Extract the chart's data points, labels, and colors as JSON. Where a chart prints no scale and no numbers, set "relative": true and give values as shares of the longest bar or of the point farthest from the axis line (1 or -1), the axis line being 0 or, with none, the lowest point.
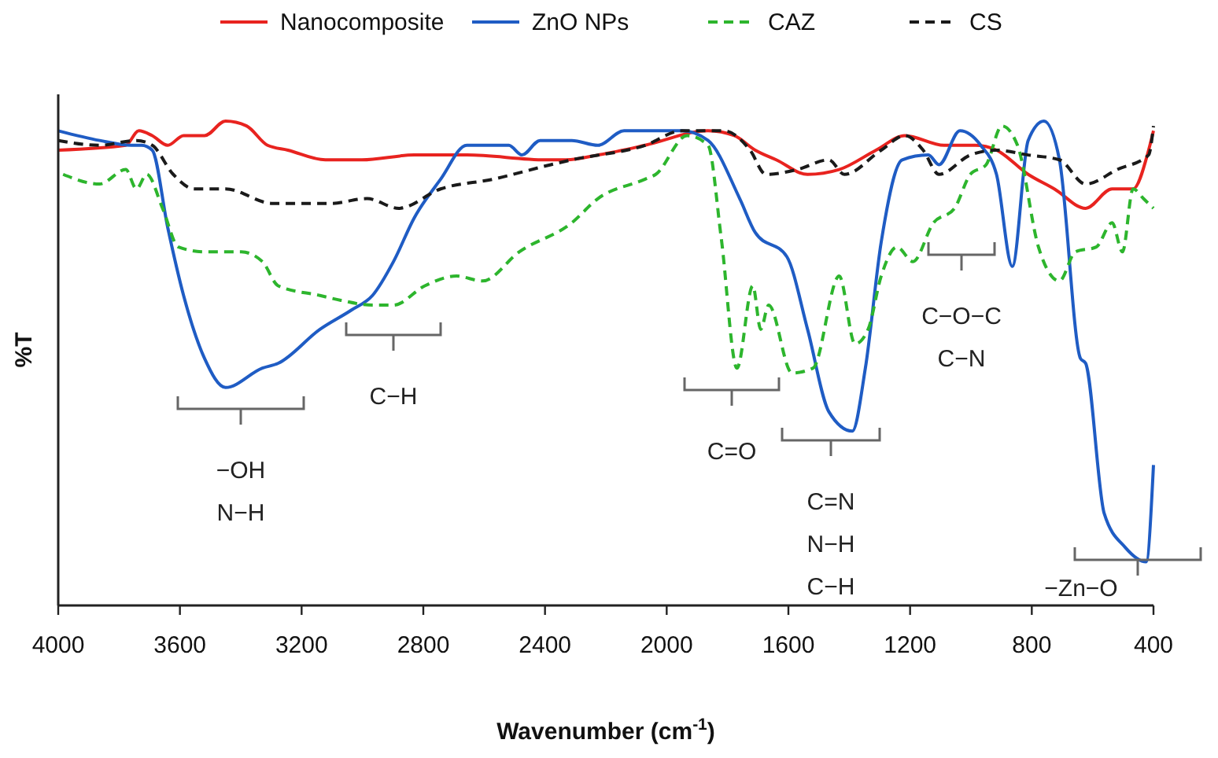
{
  "chart_data": {
    "type": "line",
    "relative": true,
    "xlabel": "Wavenumber (cm$^{-1}$)",
    "ylabel": "%T",
    "xlim": [
      4000,
      400
    ],
    "xticks": [
      4000,
      3600,
      3200,
      2800,
      2400,
      2000,
      1600,
      1200,
      800,
      400
    ],
    "legend": "top",
    "tick_labels": "x",
    "grid": false,
    "marker": "none",
    "series": [
      {
        "name": "Nanocomposite",
        "color": "#e8231f",
        "line_style": "solid",
        "x": [
          4000,
          3778,
          3735,
          3691,
          3640,
          3588,
          3519,
          3450,
          3381,
          3312,
          3245,
          3122,
          3002,
          2830,
          2657,
          2398,
          2330,
          2226,
          2071,
          1864,
          1778,
          1709,
          1640,
          1537,
          1433,
          1312,
          1217,
          1088,
          985,
          916,
          812,
          726,
          623,
          536,
          467,
          416,
          400
        ],
        "values": [
          0.94,
          0.95,
          0.98,
          0.97,
          0.95,
          0.97,
          0.97,
          1.0,
          0.99,
          0.95,
          0.94,
          0.92,
          0.92,
          0.93,
          0.93,
          0.92,
          0.92,
          0.93,
          0.95,
          0.98,
          0.97,
          0.94,
          0.92,
          0.89,
          0.9,
          0.94,
          0.97,
          0.95,
          0.95,
          0.94,
          0.89,
          0.86,
          0.82,
          0.86,
          0.86,
          0.94,
          0.98
        ]
      },
      {
        "name": "ZnO NPs",
        "color": "#1f5cc4",
        "line_style": "solid",
        "x": [
          4000,
          3864,
          3760,
          3726,
          3691,
          3640,
          3588,
          3519,
          3450,
          3329,
          3277,
          3140,
          3036,
          2967,
          2898,
          2830,
          2743,
          2657,
          2519,
          2476,
          2416,
          2312,
          2226,
          2140,
          1950,
          1864,
          1760,
          1709,
          1605,
          1537,
          1467,
          1390,
          1347,
          1295,
          1226,
          1140,
          1105,
          1036,
          968,
          916,
          864,
          812,
          760,
          709,
          640,
          623,
          562,
          493,
          424,
          400
        ],
        "values": [
          0.98,
          0.96,
          0.95,
          0.95,
          0.94,
          0.78,
          0.64,
          0.51,
          0.45,
          0.49,
          0.5,
          0.57,
          0.61,
          0.64,
          0.71,
          0.8,
          0.88,
          0.95,
          0.95,
          0.93,
          0.96,
          0.96,
          0.95,
          0.98,
          0.98,
          0.96,
          0.84,
          0.77,
          0.72,
          0.57,
          0.4,
          0.36,
          0.49,
          0.75,
          0.92,
          0.93,
          0.91,
          0.98,
          0.95,
          0.89,
          0.7,
          0.96,
          1.0,
          0.92,
          0.51,
          0.5,
          0.19,
          0.12,
          0.09,
          0.29
        ]
      },
      {
        "name": "CAZ",
        "color": "#2db52d",
        "line_style": "dashed",
        "x": [
          3984,
          3864,
          3778,
          3743,
          3709,
          3657,
          3605,
          3519,
          3398,
          3329,
          3277,
          3140,
          3071,
          2967,
          2898,
          2795,
          2691,
          2605,
          2485,
          2312,
          2226,
          2071,
          2036,
          1933,
          1864,
          1821,
          1769,
          1717,
          1691,
          1665,
          1588,
          1519,
          1433,
          1381,
          1338,
          1295,
          1243,
          1191,
          1123,
          1054,
          1002,
          950,
          898,
          847,
          778,
          709,
          657,
          588,
          536,
          502,
          467,
          433,
          400
        ],
        "values": [
          0.89,
          0.87,
          0.9,
          0.86,
          0.89,
          0.82,
          0.74,
          0.73,
          0.73,
          0.71,
          0.66,
          0.64,
          0.63,
          0.62,
          0.62,
          0.66,
          0.68,
          0.67,
          0.73,
          0.79,
          0.84,
          0.88,
          0.89,
          0.97,
          0.95,
          0.76,
          0.49,
          0.66,
          0.57,
          0.62,
          0.48,
          0.49,
          0.68,
          0.54,
          0.57,
          0.68,
          0.74,
          0.71,
          0.79,
          0.82,
          0.89,
          0.91,
          0.99,
          0.95,
          0.74,
          0.67,
          0.73,
          0.74,
          0.79,
          0.73,
          0.86,
          0.84,
          0.82
        ]
      },
      {
        "name": "CS",
        "color": "#1a1a1a",
        "line_style": "dashed",
        "x": [
          4000,
          3864,
          3743,
          3691,
          3622,
          3553,
          3450,
          3295,
          3105,
          2985,
          2881,
          2743,
          2571,
          2381,
          2312,
          2071,
          1950,
          1812,
          1726,
          1674,
          1571,
          1467,
          1416,
          1295,
          1217,
          1157,
          1105,
          1002,
          916,
          812,
          709,
          623,
          519,
          416,
          400
        ],
        "values": [
          0.96,
          0.95,
          0.96,
          0.95,
          0.89,
          0.86,
          0.86,
          0.83,
          0.83,
          0.84,
          0.82,
          0.86,
          0.88,
          0.91,
          0.92,
          0.95,
          0.98,
          0.98,
          0.94,
          0.89,
          0.9,
          0.92,
          0.89,
          0.94,
          0.97,
          0.94,
          0.89,
          0.93,
          0.94,
          0.93,
          0.92,
          0.87,
          0.9,
          0.93,
          0.99
        ]
      }
    ],
    "annotations": [
      "−OH\nN−H",
      "C−H",
      "C=O",
      "C=N\nN−H\nC−H",
      "C−O−C\nC−N",
      "−Zn−O"
    ]
  }
}
